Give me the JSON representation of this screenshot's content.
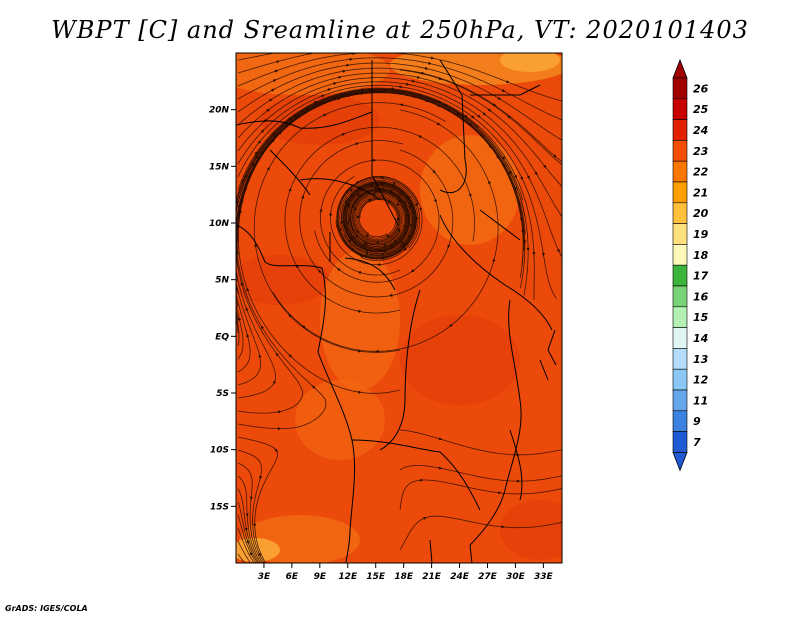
{
  "title": "WBPT [C] and Sreamline at 250hPa, VT: 2020101403",
  "credit": "GrADS: IGES/COLA",
  "map": {
    "lat_labels": [
      "20N",
      "15N",
      "10N",
      "5N",
      "EQ",
      "5S",
      "10S",
      "15S"
    ],
    "lat_values": [
      20,
      15,
      10,
      5,
      0,
      -5,
      -10,
      -15
    ],
    "lon_labels": [
      "3E",
      "6E",
      "9E",
      "12E",
      "15E",
      "18E",
      "21E",
      "24E",
      "27E",
      "30E",
      "33E"
    ],
    "lon_values": [
      3,
      6,
      9,
      12,
      15,
      18,
      21,
      24,
      27,
      30,
      33
    ],
    "lon_range": [
      0,
      35
    ],
    "lat_range": [
      -20,
      25
    ]
  },
  "colorbar": {
    "levels": [
      "26",
      "25",
      "24",
      "23",
      "22",
      "21",
      "20",
      "19",
      "18",
      "17",
      "16",
      "15",
      "14",
      "13",
      "12",
      "11",
      "9",
      "7"
    ],
    "colors": [
      "#a00000",
      "#c80000",
      "#e32000",
      "#f24d00",
      "#fa7800",
      "#ff9f00",
      "#ffc03c",
      "#ffe07a",
      "#fdf8b8",
      "#3cb43c",
      "#78d278",
      "#b4f0b4",
      "#e1f5f5",
      "#b4dcfa",
      "#8cc8f5",
      "#64a5ec",
      "#3c82e1",
      "#1e5ad2"
    ]
  },
  "colors": {
    "field_main": "#ec4a0a",
    "field_warm": "#e23d08",
    "field_cool": "#f36a12",
    "streamline": "#2a0d00"
  }
}
